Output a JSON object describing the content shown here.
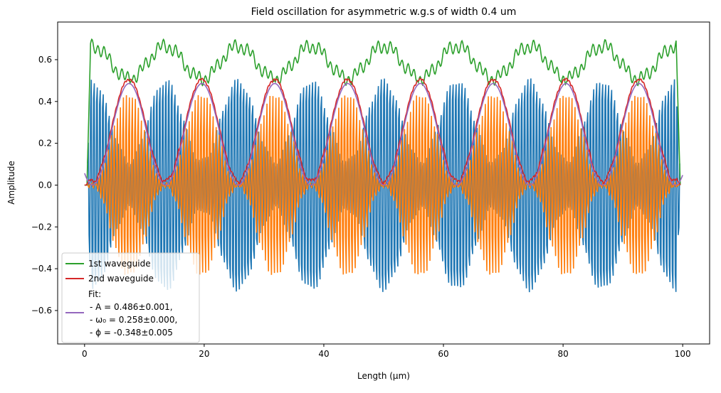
{
  "chart_data": {
    "type": "line",
    "title": "Field oscillation for asymmetric w.g.s of width 0.4 um",
    "xlabel": "Length (μm)",
    "ylabel": "Amplitude",
    "xlim": [
      -4.5,
      104.5
    ],
    "ylim": [
      -0.76,
      0.78
    ],
    "x_ticks": [
      0,
      20,
      40,
      60,
      80,
      100
    ],
    "y_ticks": [
      -0.6,
      -0.4,
      -0.2,
      0.0,
      0.2,
      0.4,
      0.6
    ],
    "x_tick_labels": [
      "0",
      "20",
      "40",
      "60",
      "80",
      "100"
    ],
    "y_tick_labels": [
      "−0.6",
      "−0.4",
      "−0.2",
      "0.0",
      "0.2",
      "0.4",
      "0.6"
    ],
    "legend_position": "lower-left",
    "series": [
      {
        "name": "1st waveguide field",
        "color": "#1f77b4",
        "kind": "fast-oscillation",
        "x_range": [
          0.5,
          99.5
        ],
        "amplitude_envelope": "0.65 - 0.5*mod",
        "carrier_period": 0.5
      },
      {
        "name": "2nd waveguide field",
        "color": "#ff7f0e",
        "kind": "fast-oscillation",
        "x_range": [
          0.5,
          99.5
        ],
        "amplitude_envelope": "0.5*mod",
        "carrier_period": 0.5
      },
      {
        "name": "1st waveguide",
        "color": "#2ca02c",
        "kind": "envelope",
        "x_range": [
          0,
          99.5
        ],
        "typical_max": 0.66
      },
      {
        "name": "2nd waveguide",
        "color": "#d62728",
        "kind": "envelope",
        "x_range": [
          0,
          99.5
        ],
        "typical_max": 0.5
      },
      {
        "name": "Fit",
        "color": "#9467bd",
        "kind": "fit",
        "function": "A*sin^2(omega0*x + phi)",
        "A": 0.486,
        "omega0": 0.258,
        "phi": -0.348,
        "x_range": [
          0,
          100
        ]
      }
    ],
    "legend": [
      {
        "label": "1st waveguide",
        "color": "#2ca02c"
      },
      {
        "label": "2nd waveguide",
        "color": "#d62728"
      },
      {
        "label": "Fit:",
        "color": "#9467bd",
        "lines": [
          "- A = 0.486±0.001,",
          "- ω₀ = 0.258±0.000,",
          "- ϕ = -0.348±0.005"
        ]
      }
    ]
  }
}
